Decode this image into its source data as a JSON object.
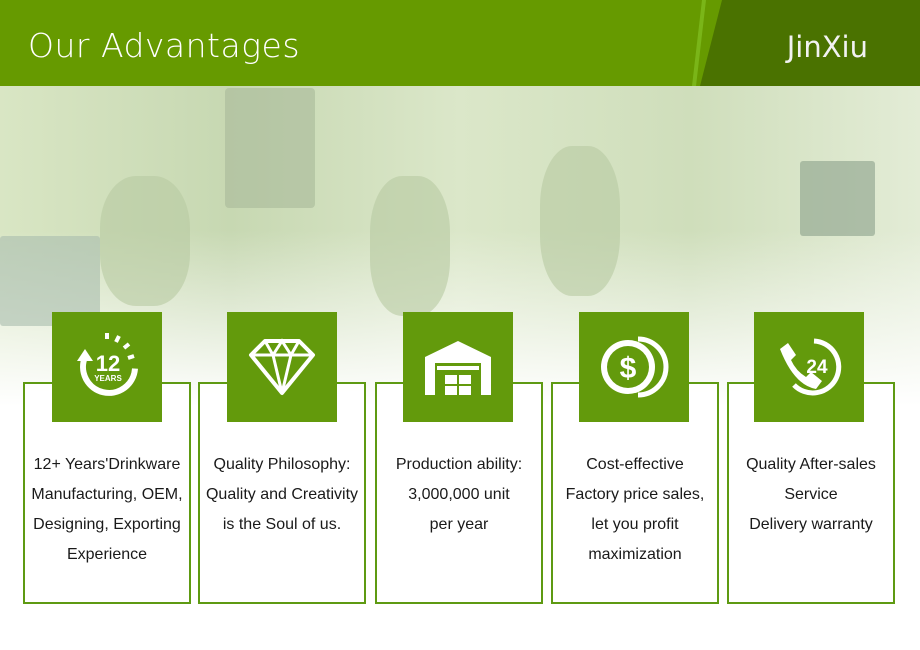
{
  "header": {
    "title": "Our Advantages",
    "brand": "JinXiu"
  },
  "colors": {
    "green": "#669a00",
    "dark_green": "#4a7200",
    "card_border": "#5e9a12"
  },
  "cards": [
    {
      "icon": "12-years-icon",
      "icon_text": {
        "number": "12",
        "label": "YEARS"
      },
      "lines": [
        "12+ Years'Drinkware",
        "Manufacturing, OEM,",
        "Designing, Exporting",
        "Experience"
      ]
    },
    {
      "icon": "diamond-icon",
      "lines": [
        "Quality Philosophy:",
        "Quality and Creativity",
        "is the Soul of us."
      ]
    },
    {
      "icon": "warehouse-icon",
      "lines": [
        "Production ability:",
        "3,000,000 unit",
        "per year"
      ]
    },
    {
      "icon": "dollar-coin-icon",
      "lines": [
        "Cost-effective",
        "Factory price sales,",
        "let you profit",
        "maximization"
      ]
    },
    {
      "icon": "phone-24-icon",
      "icon_text": {
        "number": "24"
      },
      "lines": [
        "Quality After-sales",
        "Service",
        "Delivery warranty"
      ]
    }
  ]
}
